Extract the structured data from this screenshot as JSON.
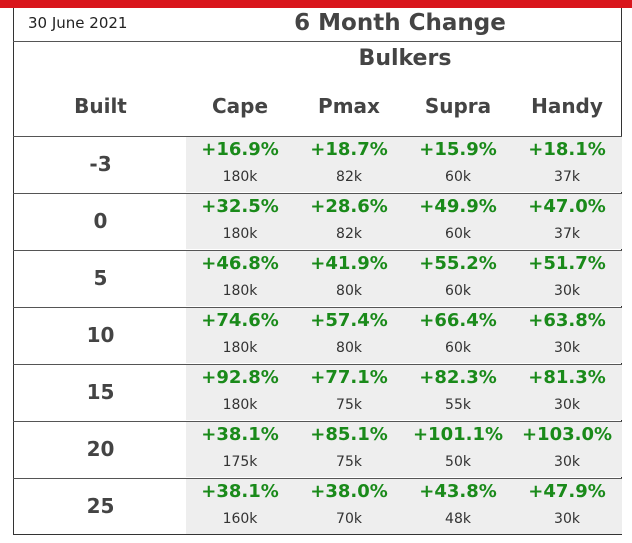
{
  "header": {
    "date": "30 June 2021",
    "title": "6 Month Change",
    "subtitle": "Bulkers",
    "accent_color": "#d9161c"
  },
  "table": {
    "row_header": "Built",
    "columns": [
      "Cape",
      "Pmax",
      "Supra",
      "Handy"
    ],
    "rows": [
      {
        "built": "-3",
        "cells": [
          {
            "pct": "+16.9%",
            "size": "180k"
          },
          {
            "pct": "+18.7%",
            "size": "82k"
          },
          {
            "pct": "+15.9%",
            "size": "60k"
          },
          {
            "pct": "+18.1%",
            "size": "37k"
          }
        ]
      },
      {
        "built": "0",
        "cells": [
          {
            "pct": "+32.5%",
            "size": "180k"
          },
          {
            "pct": "+28.6%",
            "size": "82k"
          },
          {
            "pct": "+49.9%",
            "size": "60k"
          },
          {
            "pct": "+47.0%",
            "size": "37k"
          }
        ]
      },
      {
        "built": "5",
        "cells": [
          {
            "pct": "+46.8%",
            "size": "180k"
          },
          {
            "pct": "+41.9%",
            "size": "80k"
          },
          {
            "pct": "+55.2%",
            "size": "60k"
          },
          {
            "pct": "+51.7%",
            "size": "30k"
          }
        ]
      },
      {
        "built": "10",
        "cells": [
          {
            "pct": "+74.6%",
            "size": "180k"
          },
          {
            "pct": "+57.4%",
            "size": "80k"
          },
          {
            "pct": "+66.4%",
            "size": "60k"
          },
          {
            "pct": "+63.8%",
            "size": "30k"
          }
        ]
      },
      {
        "built": "15",
        "cells": [
          {
            "pct": "+92.8%",
            "size": "180k"
          },
          {
            "pct": "+77.1%",
            "size": "75k"
          },
          {
            "pct": "+82.3%",
            "size": "55k"
          },
          {
            "pct": "+81.3%",
            "size": "30k"
          }
        ]
      },
      {
        "built": "20",
        "cells": [
          {
            "pct": "+38.1%",
            "size": "175k"
          },
          {
            "pct": "+85.1%",
            "size": "75k"
          },
          {
            "pct": "+101.1%",
            "size": "50k"
          },
          {
            "pct": "+103.0%",
            "size": "30k"
          }
        ]
      },
      {
        "built": "25",
        "cells": [
          {
            "pct": "+38.1%",
            "size": "160k"
          },
          {
            "pct": "+38.0%",
            "size": "70k"
          },
          {
            "pct": "+43.8%",
            "size": "48k"
          },
          {
            "pct": "+47.9%",
            "size": "30k"
          }
        ]
      }
    ]
  }
}
